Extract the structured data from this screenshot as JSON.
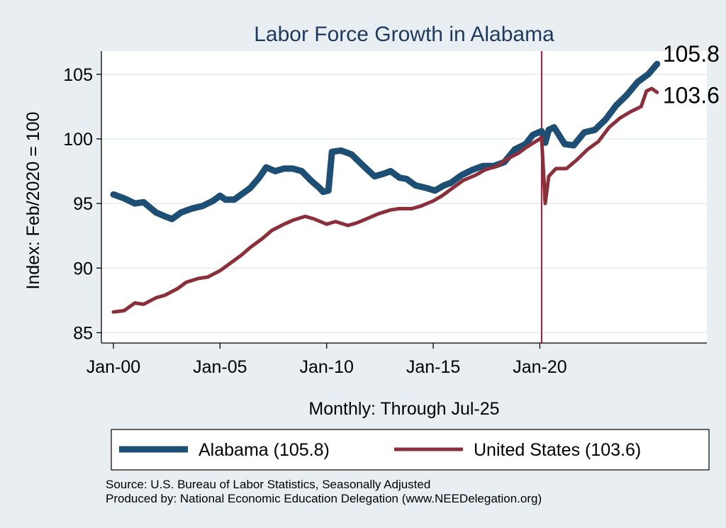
{
  "chart_data": {
    "type": "line",
    "title": "Labor Force Growth in Alabama",
    "ylabel": "Index: Feb/2020 = 100",
    "xlabel": "Monthly: Through Jul-25",
    "x_range": [
      "2000-01",
      "2025-07"
    ],
    "x_axis_max": "2027-11",
    "x_ticks": [
      {
        "label": "Jan-00",
        "x": "2000-01"
      },
      {
        "label": "Jan-05",
        "x": "2005-01"
      },
      {
        "label": "Jan-10",
        "x": "2010-01"
      },
      {
        "label": "Jan-15",
        "x": "2015-01"
      },
      {
        "label": "Jan-20",
        "x": "2020-01"
      }
    ],
    "y_ticks": [
      85,
      90,
      95,
      100,
      105
    ],
    "ylim": [
      84.2,
      106.8
    ],
    "grid": true,
    "reference_line": {
      "x": "2020-02",
      "color": "#c0143c"
    },
    "legend_placement": "bottom",
    "series": [
      {
        "name": "Alabama (105.8)",
        "color": "#1d4e74",
        "end_label": "105.8",
        "points": [
          [
            "2000-01",
            95.7
          ],
          [
            "2000-07",
            95.4
          ],
          [
            "2001-01",
            95.0
          ],
          [
            "2001-06",
            95.1
          ],
          [
            "2002-01",
            94.3
          ],
          [
            "2002-06",
            94.0
          ],
          [
            "2002-10",
            93.8
          ],
          [
            "2003-03",
            94.3
          ],
          [
            "2003-09",
            94.6
          ],
          [
            "2004-03",
            94.8
          ],
          [
            "2004-09",
            95.2
          ],
          [
            "2005-01",
            95.6
          ],
          [
            "2005-04",
            95.3
          ],
          [
            "2005-09",
            95.3
          ],
          [
            "2006-01",
            95.7
          ],
          [
            "2006-06",
            96.2
          ],
          [
            "2006-11",
            97.0
          ],
          [
            "2007-03",
            97.8
          ],
          [
            "2007-08",
            97.5
          ],
          [
            "2008-01",
            97.7
          ],
          [
            "2008-06",
            97.7
          ],
          [
            "2008-11",
            97.5
          ],
          [
            "2009-04",
            96.8
          ],
          [
            "2009-09",
            96.2
          ],
          [
            "2009-11",
            95.9
          ],
          [
            "2010-02",
            96.0
          ],
          [
            "2010-04",
            99.0
          ],
          [
            "2010-09",
            99.1
          ],
          [
            "2011-03",
            98.8
          ],
          [
            "2011-09",
            98.0
          ],
          [
            "2012-04",
            97.1
          ],
          [
            "2012-09",
            97.3
          ],
          [
            "2013-01",
            97.5
          ],
          [
            "2013-06",
            97.0
          ],
          [
            "2013-10",
            96.9
          ],
          [
            "2014-03",
            96.4
          ],
          [
            "2014-09",
            96.2
          ],
          [
            "2015-02",
            96.0
          ],
          [
            "2015-07",
            96.4
          ],
          [
            "2015-11",
            96.6
          ],
          [
            "2016-05",
            97.2
          ],
          [
            "2016-11",
            97.6
          ],
          [
            "2017-05",
            97.9
          ],
          [
            "2017-11",
            97.9
          ],
          [
            "2018-05",
            98.2
          ],
          [
            "2018-11",
            99.2
          ],
          [
            "2019-05",
            99.6
          ],
          [
            "2019-09",
            100.3
          ],
          [
            "2020-02",
            100.6
          ],
          [
            "2020-04",
            99.7
          ],
          [
            "2020-06",
            100.7
          ],
          [
            "2020-09",
            100.9
          ],
          [
            "2021-03",
            99.6
          ],
          [
            "2021-08",
            99.5
          ],
          [
            "2022-02",
            100.5
          ],
          [
            "2022-08",
            100.7
          ],
          [
            "2023-02",
            101.5
          ],
          [
            "2023-08",
            102.6
          ],
          [
            "2024-02",
            103.4
          ],
          [
            "2024-08",
            104.4
          ],
          [
            "2025-02",
            105.0
          ],
          [
            "2025-07",
            105.8
          ]
        ]
      },
      {
        "name": "United States (103.6)",
        "color": "#8b2f3a",
        "end_label": "103.6",
        "points": [
          [
            "2000-01",
            86.6
          ],
          [
            "2000-07",
            86.7
          ],
          [
            "2001-01",
            87.3
          ],
          [
            "2001-06",
            87.2
          ],
          [
            "2002-01",
            87.7
          ],
          [
            "2002-06",
            87.9
          ],
          [
            "2003-01",
            88.4
          ],
          [
            "2003-06",
            88.9
          ],
          [
            "2004-01",
            89.2
          ],
          [
            "2004-06",
            89.3
          ],
          [
            "2005-01",
            89.8
          ],
          [
            "2005-06",
            90.3
          ],
          [
            "2006-01",
            91.0
          ],
          [
            "2006-06",
            91.6
          ],
          [
            "2007-01",
            92.3
          ],
          [
            "2007-06",
            92.9
          ],
          [
            "2008-01",
            93.4
          ],
          [
            "2008-06",
            93.7
          ],
          [
            "2009-01",
            94.0
          ],
          [
            "2009-06",
            93.8
          ],
          [
            "2010-01",
            93.4
          ],
          [
            "2010-06",
            93.6
          ],
          [
            "2011-01",
            93.3
          ],
          [
            "2011-06",
            93.5
          ],
          [
            "2012-01",
            93.9
          ],
          [
            "2012-06",
            94.2
          ],
          [
            "2013-01",
            94.5
          ],
          [
            "2013-06",
            94.6
          ],
          [
            "2014-01",
            94.6
          ],
          [
            "2014-06",
            94.8
          ],
          [
            "2015-01",
            95.2
          ],
          [
            "2015-06",
            95.6
          ],
          [
            "2016-01",
            96.3
          ],
          [
            "2016-06",
            96.8
          ],
          [
            "2017-01",
            97.2
          ],
          [
            "2017-06",
            97.6
          ],
          [
            "2018-01",
            97.9
          ],
          [
            "2018-06",
            98.4
          ],
          [
            "2019-01",
            98.9
          ],
          [
            "2019-06",
            99.4
          ],
          [
            "2020-01",
            100.0
          ],
          [
            "2020-02",
            100.1
          ],
          [
            "2020-04",
            95.0
          ],
          [
            "2020-06",
            97.1
          ],
          [
            "2020-10",
            97.7
          ],
          [
            "2021-04",
            97.7
          ],
          [
            "2021-10",
            98.4
          ],
          [
            "2022-04",
            99.2
          ],
          [
            "2022-10",
            99.8
          ],
          [
            "2023-04",
            100.9
          ],
          [
            "2023-10",
            101.6
          ],
          [
            "2024-04",
            102.1
          ],
          [
            "2024-10",
            102.5
          ],
          [
            "2025-01",
            103.7
          ],
          [
            "2025-04",
            103.9
          ],
          [
            "2025-07",
            103.6
          ]
        ]
      }
    ],
    "source_lines": [
      "Source: U.S. Bureau of Labor Statistics, Seasonally Adjusted",
      "Produced by: National Economic Education Delegation (www.NEEDelegation.org)"
    ]
  },
  "style": {
    "background": "#e9eef3",
    "plot_background": "#ffffff",
    "grid_color": "#e3eaf0",
    "title_color": "#1f3a5f"
  }
}
